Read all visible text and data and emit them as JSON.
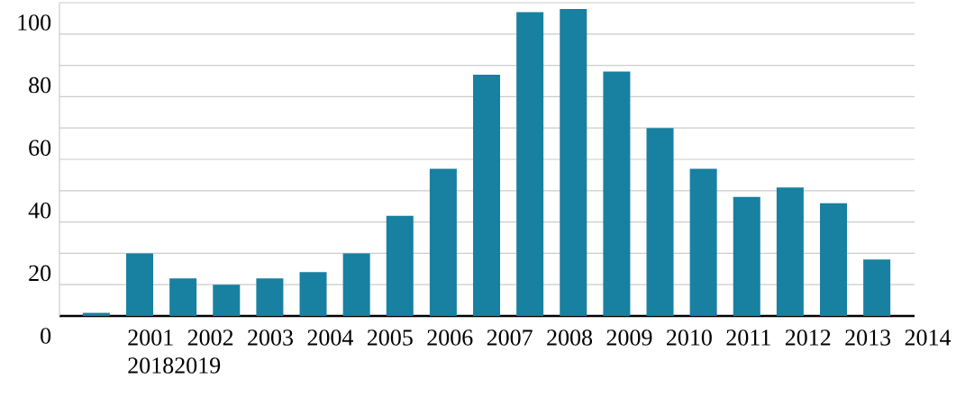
{
  "chart_data": {
    "type": "bar",
    "categories": [
      null,
      null,
      null,
      null,
      null,
      null,
      null,
      null,
      null,
      null,
      null,
      null,
      null,
      null,
      null,
      null,
      null,
      null,
      null
    ],
    "values": [
      1,
      20,
      12,
      10,
      12,
      14,
      20,
      32,
      47,
      77,
      97,
      98,
      78,
      60,
      47,
      38,
      41,
      36,
      18
    ],
    "color": "#1880a1",
    "ylim": [
      0,
      100
    ],
    "yticks": [
      0,
      {
        "value": 10,
        "label": null
      },
      20,
      {
        "value": 30,
        "label": null
      },
      40,
      {
        "value": 50,
        "label": null
      },
      60,
      {
        "value": 70,
        "label": null
      },
      80,
      {
        "value": 90,
        "label": null
      },
      100
    ],
    "grid": "y",
    "tick_labels": "y",
    "annotations": [
      "2001 2002 2003 2004 2005 2006 2007 2008 2009 2010 2011 2012 2013 2014 20182019"
    ]
  }
}
